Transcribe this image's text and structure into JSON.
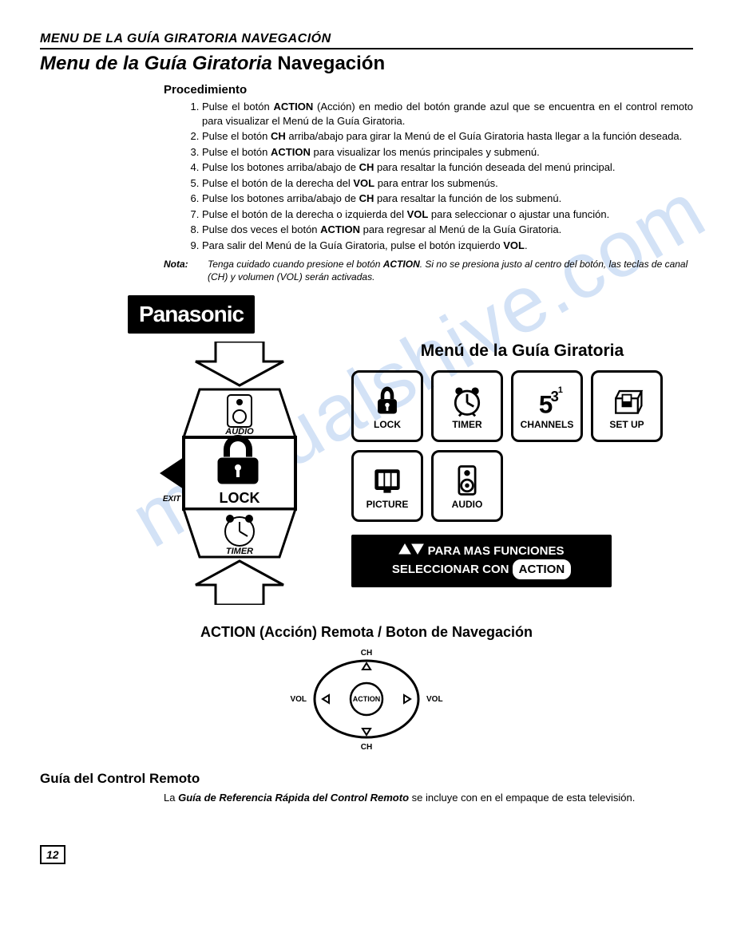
{
  "header": {
    "running_head": "MENU DE LA GUÍA GIRATORIA NAVEGACIÓN"
  },
  "title": {
    "italic": "Menu de la Guía Giratoria",
    "plain": " Navegación"
  },
  "procedure": {
    "heading": "Procedimiento",
    "steps": [
      "Pulse el botón <b>ACTION</b> (Acción) en medio del botón grande azul que se encuentra en el control remoto para visualizar el Menú de la Guía Giratoria.",
      "Pulse el botón <b>CH</b> arriba/abajo para girar la Menú de el Guía Giratoria hasta llegar a la función deseada.",
      "Pulse el botón <b>ACTION</b> para visualizar los menús principales y submenú.",
      "Pulse los botones arriba/abajo de <b>CH</b> para resaltar la función deseada del menú principal.",
      "Pulse el botón de la derecha del <b>VOL</b> para entrar los submenús.",
      "Pulse los botones arriba/abajo de <b>CH</b> para resaltar la función de los  submenú.",
      "Pulse el botón de la derecha o izquierda del <b>VOL</b> para seleccionar o ajustar una función.",
      "Pulse dos veces el botón <b>ACTION</b> para regresar al Menú de la Guía Giratoria.",
      "Para salir del Menú de la Guía Giratoria, pulse el botón izquierdo <b>VOL</b>."
    ]
  },
  "nota": {
    "label": "Nota:",
    "text": "Tenga cuidado cuando presione el botón <b>ACTION</b>. Si no se presiona justo al centro del botón, las teclas de canal (CH) y volumen (VOL) serán  activadas."
  },
  "brand": "Panasonic",
  "carousel": {
    "top": "AUDIO",
    "mid": "LOCK",
    "bottom": "TIMER",
    "exit": "EXIT"
  },
  "menu_grid": {
    "title": "Menú de la Guía Giratoria",
    "items": [
      {
        "label": "LOCK",
        "icon": "lock"
      },
      {
        "label": "TIMER",
        "icon": "clock"
      },
      {
        "label": "CHANNELS",
        "icon": "channels"
      },
      {
        "label": "SET UP",
        "icon": "setup"
      },
      {
        "label": "PICTURE",
        "icon": "picture"
      },
      {
        "label": "AUDIO",
        "icon": "audio"
      }
    ]
  },
  "instruction_bar": {
    "line1": "PARA MAS FUNCIONES",
    "line2_pre": "SELECCIONAR CON ",
    "action": "ACTION"
  },
  "nav": {
    "heading": "ACTION (Acción) Remota / Boton de Navegación",
    "ch": "CH",
    "vol": "VOL",
    "action": "ACTION"
  },
  "remote_guide": {
    "title": "Guía del  Control Remoto",
    "text_pre": "La ",
    "text_bold": "Guía de Referencia Rápida del Control Remoto",
    "text_post": " se incluye con en el empaque de esta televisión."
  },
  "page_number": "12",
  "watermark": "manualshive.com",
  "colors": {
    "black": "#000000",
    "white": "#ffffff",
    "wm": "rgba(80,140,220,0.25)"
  }
}
